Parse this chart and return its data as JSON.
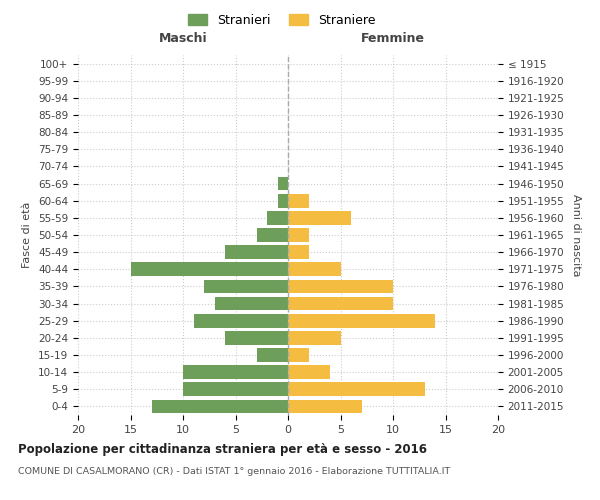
{
  "age_groups": [
    "0-4",
    "5-9",
    "10-14",
    "15-19",
    "20-24",
    "25-29",
    "30-34",
    "35-39",
    "40-44",
    "45-49",
    "50-54",
    "55-59",
    "60-64",
    "65-69",
    "70-74",
    "75-79",
    "80-84",
    "85-89",
    "90-94",
    "95-99",
    "100+"
  ],
  "birth_years": [
    "2011-2015",
    "2006-2010",
    "2001-2005",
    "1996-2000",
    "1991-1995",
    "1986-1990",
    "1981-1985",
    "1976-1980",
    "1971-1975",
    "1966-1970",
    "1961-1965",
    "1956-1960",
    "1951-1955",
    "1946-1950",
    "1941-1945",
    "1936-1940",
    "1931-1935",
    "1926-1930",
    "1921-1925",
    "1916-1920",
    "≤ 1915"
  ],
  "maschi": [
    13,
    10,
    10,
    3,
    6,
    9,
    7,
    8,
    15,
    6,
    3,
    2,
    1,
    1,
    0,
    0,
    0,
    0,
    0,
    0,
    0
  ],
  "femmine": [
    7,
    13,
    4,
    2,
    5,
    14,
    10,
    10,
    5,
    2,
    2,
    6,
    2,
    0,
    0,
    0,
    0,
    0,
    0,
    0,
    0
  ],
  "maschi_color": "#6d9e5a",
  "femmine_color": "#f5bc42",
  "xlim": 20,
  "title": "Popolazione per cittadinanza straniera per età e sesso - 2016",
  "subtitle": "COMUNE DI CASALMORANO (CR) - Dati ISTAT 1° gennaio 2016 - Elaborazione TUTTITALIA.IT",
  "xlabel_left": "Maschi",
  "xlabel_right": "Femmine",
  "ylabel_left": "Fasce di età",
  "ylabel_right": "Anni di nascita",
  "legend_maschi": "Stranieri",
  "legend_femmine": "Straniere",
  "bg_color": "#ffffff",
  "grid_color": "#cccccc",
  "bar_height": 0.8
}
